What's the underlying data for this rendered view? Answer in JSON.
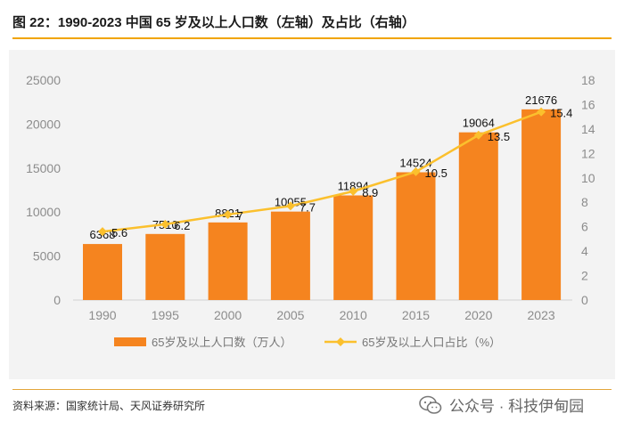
{
  "header": {
    "title": "图 22：1990-2023 中国 65 岁及以上人口数（左轴）及占比（右轴）"
  },
  "footer": {
    "source": "资料来源：国家统计局、天风证券研究所",
    "watermark_text": "公众号 · 科技伊甸园",
    "watermark_icon": "wechat-icon"
  },
  "colors": {
    "bar": "#f5841f",
    "line": "#fbc02d",
    "accent": "#f0a400",
    "axis_text": "#8c8c8c"
  },
  "chart_data": {
    "type": "bar+line",
    "categories": [
      "1990",
      "1995",
      "2000",
      "2005",
      "2010",
      "2015",
      "2020",
      "2023"
    ],
    "series": [
      {
        "name": "65岁及以上人口数（万人）",
        "type": "bar",
        "axis": "left",
        "values": [
          6368,
          7510,
          8821,
          10055,
          11894,
          14524,
          19064,
          21676
        ],
        "labels": [
          "6368",
          "7510",
          "8821",
          "10055",
          "11894",
          "14524",
          "19064",
          "21676"
        ]
      },
      {
        "name": "65岁及以上人口占比（%）",
        "type": "line",
        "axis": "right",
        "values": [
          5.6,
          6.2,
          7,
          7.7,
          8.9,
          10.5,
          13.5,
          15.4
        ],
        "labels": [
          "5.6",
          "6.2",
          "7",
          "7.7",
          "8.9",
          "10.5",
          "13.5",
          "15.4"
        ]
      }
    ],
    "left_axis": {
      "min": 0,
      "max": 25000,
      "ticks": [
        "0",
        "5000",
        "10000",
        "15000",
        "20000",
        "25000"
      ]
    },
    "right_axis": {
      "min": 0,
      "max": 18,
      "ticks": [
        "0",
        "2",
        "4",
        "6",
        "8",
        "10",
        "12",
        "14",
        "16",
        "18"
      ]
    },
    "legend": [
      {
        "label": "65岁及以上人口数（万人）",
        "kind": "bar"
      },
      {
        "label": "65岁及以上人口占比（%）",
        "kind": "line"
      }
    ],
    "legend_position": "bottom",
    "grid": false
  }
}
